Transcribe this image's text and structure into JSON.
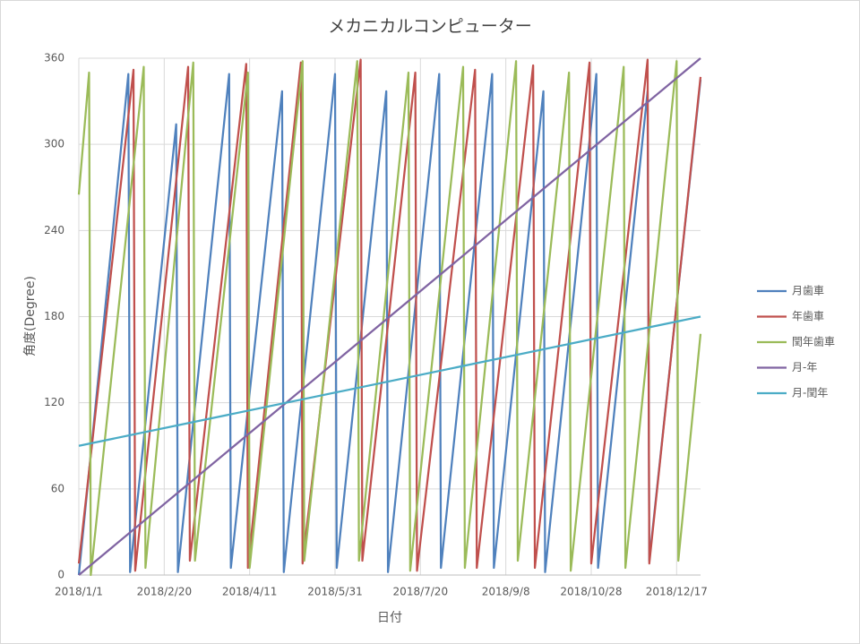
{
  "chart_data": {
    "type": "line",
    "title": "メカニカルコンピューター",
    "x_label": "日付",
    "y_label": "角度(Degree)",
    "xlim": [
      "2018/1/1",
      "2018/12/31"
    ],
    "xticks": [
      "2018/1/1",
      "2018/2/20",
      "2018/4/11",
      "2018/5/31",
      "2018/7/20",
      "2018/9/8",
      "2018/10/28",
      "2018/12/17"
    ],
    "ylim": [
      0,
      360
    ],
    "yticks": [
      0,
      60,
      120,
      180,
      240,
      300,
      360
    ],
    "grid": true,
    "legend": "right",
    "series": [
      {
        "name": "月歯車",
        "color": "#4f81bd",
        "x": [
          "2018/1/1",
          "2018/1/30",
          "2018/1/31",
          "2018/2/27",
          "2018/2/28",
          "2018/3/30",
          "2018/3/31",
          "2018/4/30",
          "2018/5/1",
          "2018/5/31",
          "2018/6/1",
          "2018/6/30",
          "2018/7/1",
          "2018/7/31",
          "2018/8/1",
          "2018/8/31",
          "2018/9/1",
          "2018/9/30",
          "2018/10/1",
          "2018/10/31",
          "2018/11/1",
          "2018/11/30",
          "2018/12/1",
          "2018/12/31"
        ],
        "values": [
          0,
          349,
          2,
          314,
          2,
          349,
          5,
          337,
          2,
          349,
          5,
          337,
          2,
          349,
          5,
          349,
          5,
          337,
          2,
          349,
          5,
          337,
          10,
          345
        ]
      },
      {
        "name": "年歯車",
        "color": "#c0504d",
        "x": [
          "2018/1/1",
          "2018/2/2",
          "2018/2/3",
          "2018/3/6",
          "2018/3/7",
          "2018/4/9",
          "2018/4/10",
          "2018/5/11",
          "2018/5/12",
          "2018/6/15",
          "2018/6/16",
          "2018/7/17",
          "2018/7/18",
          "2018/8/21",
          "2018/8/22",
          "2018/9/24",
          "2018/9/25",
          "2018/10/27",
          "2018/10/28",
          "2018/11/30",
          "2018/12/1",
          "2018/12/31"
        ],
        "values": [
          8,
          352,
          3,
          354,
          10,
          356,
          5,
          357,
          8,
          359,
          10,
          350,
          3,
          352,
          5,
          355,
          5,
          357,
          8,
          359,
          8,
          347
        ]
      },
      {
        "name": "閏年歯車",
        "color": "#9bbb59",
        "x": [
          "2018/1/1",
          "2018/1/7",
          "2018/1/8",
          "2018/2/8",
          "2018/2/9",
          "2018/3/9",
          "2018/3/10",
          "2018/4/10",
          "2018/4/11",
          "2018/5/12",
          "2018/5/13",
          "2018/6/13",
          "2018/6/14",
          "2018/7/13",
          "2018/7/14",
          "2018/8/14",
          "2018/8/15",
          "2018/9/14",
          "2018/9/15",
          "2018/10/15",
          "2018/10/16",
          "2018/11/16",
          "2018/11/17",
          "2018/12/17",
          "2018/12/18",
          "2018/12/31"
        ],
        "values": [
          265,
          350,
          0,
          354,
          5,
          357,
          10,
          350,
          5,
          358,
          10,
          358,
          10,
          350,
          3,
          354,
          5,
          358,
          10,
          350,
          3,
          354,
          5,
          358,
          10,
          168
        ]
      },
      {
        "name": "月-年",
        "color": "#8064a2",
        "x": [
          "2018/1/1",
          "2018/12/31"
        ],
        "values": [
          0,
          360
        ]
      },
      {
        "name": "月-閏年",
        "color": "#4bacc6",
        "x": [
          "2018/1/1",
          "2018/12/31"
        ],
        "values": [
          90,
          180
        ]
      }
    ]
  }
}
